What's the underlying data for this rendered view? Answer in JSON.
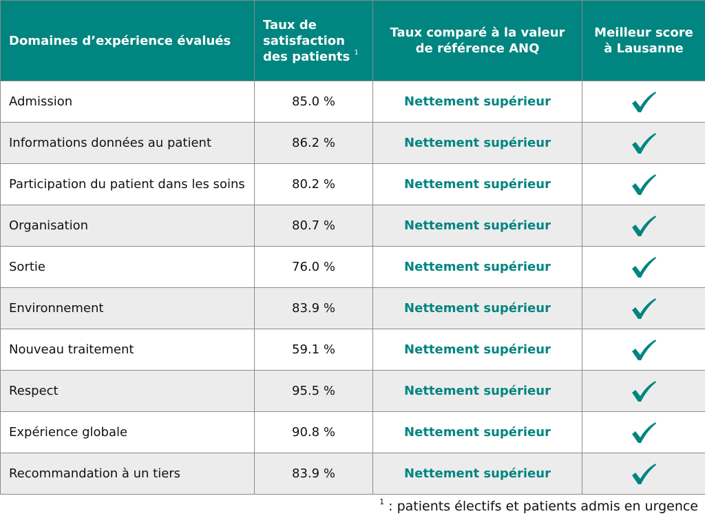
{
  "header": {
    "domains": "Domaines d’expérience évalués",
    "satisfaction": "Taux de satisfaction des patients",
    "satisfaction_note": "1",
    "comparison": "Taux comparé à la valeur de référence ANQ",
    "best_score": "Meilleur score à Lausanne"
  },
  "rows": [
    {
      "domain": "Admission",
      "rate": "85.0 %",
      "comparison": "Nettement supérieur",
      "best": "check-icon"
    },
    {
      "domain": "Informations données au patient",
      "rate": "86.2 %",
      "comparison": "Nettement supérieur",
      "best": "check-icon"
    },
    {
      "domain": "Participation du patient dans les soins",
      "rate": "80.2 %",
      "comparison": "Nettement supérieur",
      "best": "check-icon"
    },
    {
      "domain": "Organisation",
      "rate": "80.7 %",
      "comparison": "Nettement supérieur",
      "best": "check-icon"
    },
    {
      "domain": "Sortie",
      "rate": "76.0 %",
      "comparison": "Nettement supérieur",
      "best": "check-icon"
    },
    {
      "domain": "Environnement",
      "rate": "83.9 %",
      "comparison": "Nettement supérieur",
      "best": "check-icon"
    },
    {
      "domain": "Nouveau traitement",
      "rate": "59.1 %",
      "comparison": "Nettement supérieur",
      "best": "check-icon"
    },
    {
      "domain": "Respect",
      "rate": "95.5 %",
      "comparison": "Nettement supérieur",
      "best": "check-icon"
    },
    {
      "domain": "Expérience globale",
      "rate": "90.8 %",
      "comparison": "Nettement supérieur",
      "best": "check-icon"
    },
    {
      "domain": "Recommandation à un tiers",
      "rate": "83.9 %",
      "comparison": "Nettement supérieur",
      "best": "check-icon"
    }
  ],
  "footnote": {
    "mark": "1",
    "text": " : patients électifs et patients admis en urgence"
  },
  "colors": {
    "header_bg": "#008580",
    "accent_text": "#008580",
    "row_alt_bg": "#ececec"
  }
}
